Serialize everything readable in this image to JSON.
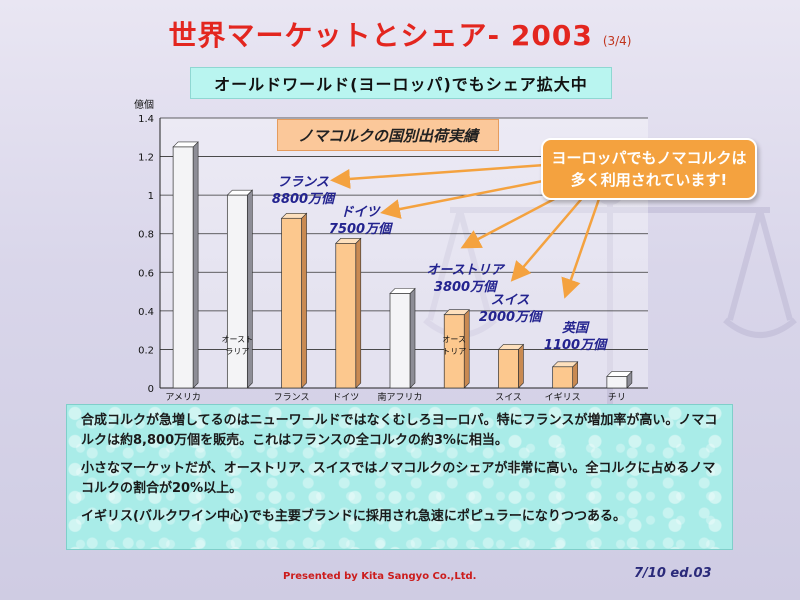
{
  "header": {
    "title": "世界マーケットとシェア- 2003",
    "page_indicator": "(3/4)",
    "subtitle": "オールドワールド(ヨーロッパ)でもシェア拡大中"
  },
  "chart_data": {
    "type": "bar",
    "title": "ノマコルクの国別出荷実績",
    "ylabel": "億個",
    "ylim": [
      0,
      1.4
    ],
    "yticks": [
      "0",
      "0.2",
      "0.4",
      "0.6",
      "0.8",
      "1",
      "1.2",
      "1.4"
    ],
    "grid": true,
    "categories": [
      "アメリカ",
      "オーストラリア",
      "フランス",
      "ドイツ",
      "南アフリカ",
      "オーストリア",
      "スイス",
      "イギリス",
      "チリ"
    ],
    "xtick_labels": [
      "アメリカ",
      "",
      "フランス",
      "ドイツ",
      "南アフリカ",
      "",
      "スイス",
      "イギリス",
      "チリ"
    ],
    "inner_labels": [
      "",
      "オースト\nラリア",
      "",
      "",
      "",
      "オース\nトリア",
      "",
      "",
      ""
    ],
    "values": [
      1.25,
      1.0,
      0.88,
      0.75,
      0.49,
      0.38,
      0.2,
      0.11,
      0.06
    ],
    "highlighted": [
      false,
      false,
      true,
      true,
      false,
      true,
      true,
      true,
      false
    ],
    "colors": {
      "highlight": "#fcc88e",
      "normal": "#f4f4f6",
      "grid": "#333333"
    }
  },
  "annotations": [
    {
      "name": "フランス",
      "value": "8800万個"
    },
    {
      "name": "ドイツ",
      "value": "7500万個"
    },
    {
      "name": "オーストリア",
      "value": "3800万個"
    },
    {
      "name": "スイス",
      "value": "2000万個"
    },
    {
      "name": "英国",
      "value": "1100万個"
    }
  ],
  "callout": {
    "line1": "ヨーロッパでもノマコルクは",
    "line2": "多く利用されています!"
  },
  "notes": [
    "合成コルクが急増してるのはニューワールドではなくむしろヨーロパ。特にフランスが増加率が高い。ノマコルクは約8,800万個を販売。これはフランスの全コルクの約3%に相当。",
    "小さなマーケットだが、オーストリア、スイスではノマコルクのシェアが非常に高い。全コルクに占めるノマコルクの割合が20%以上。",
    "イギリス(バルクワイン中心)でも主要ブランドに採用され急速にポピュラーになりつつある。"
  ],
  "footer": {
    "presented": "Presented by Kita Sangyo Co.,Ltd.",
    "page": "7/10 ed.03"
  },
  "colors": {
    "title": "#e3261f",
    "subtitle_bg": "#b9f5f0",
    "callout_bg": "#f4a23f",
    "annotation_text": "#23238f",
    "notes_bg": "#a9ece8"
  }
}
